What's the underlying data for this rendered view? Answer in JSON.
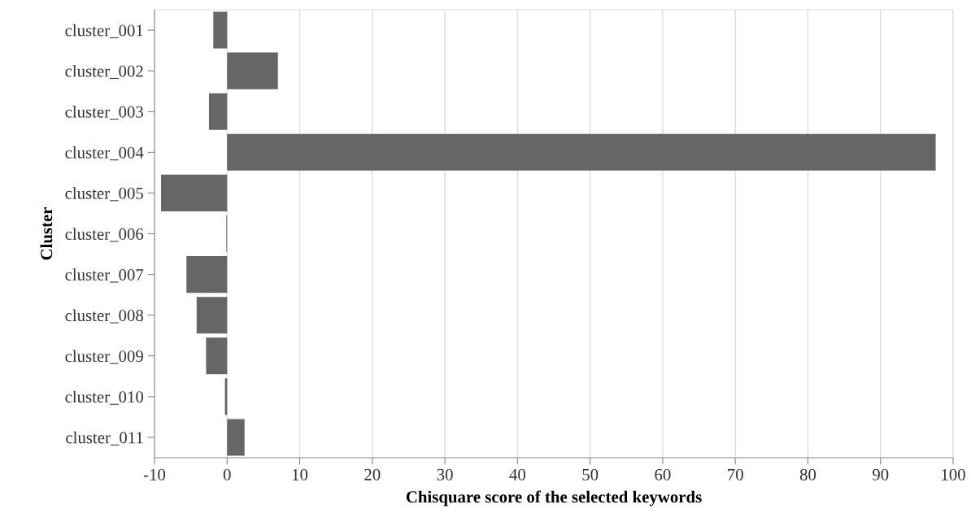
{
  "chart_data": {
    "type": "bar",
    "orientation": "horizontal",
    "xlabel": "Chisquare score of the selected keywords",
    "ylabel": "Cluster",
    "categories": [
      "cluster_001",
      "cluster_002",
      "cluster_003",
      "cluster_004",
      "cluster_005",
      "cluster_006",
      "cluster_007",
      "cluster_008",
      "cluster_009",
      "cluster_010",
      "cluster_011"
    ],
    "values": [
      -1.9,
      7.0,
      -2.5,
      97.6,
      -9.1,
      -0.1,
      -5.6,
      -4.2,
      -2.9,
      -0.3,
      2.4
    ],
    "color": "#666666",
    "xlim": [
      -10,
      100
    ],
    "xticks": [
      -10,
      0,
      10,
      20,
      30,
      40,
      50,
      60,
      70,
      80,
      90,
      100
    ],
    "grid": "x"
  }
}
